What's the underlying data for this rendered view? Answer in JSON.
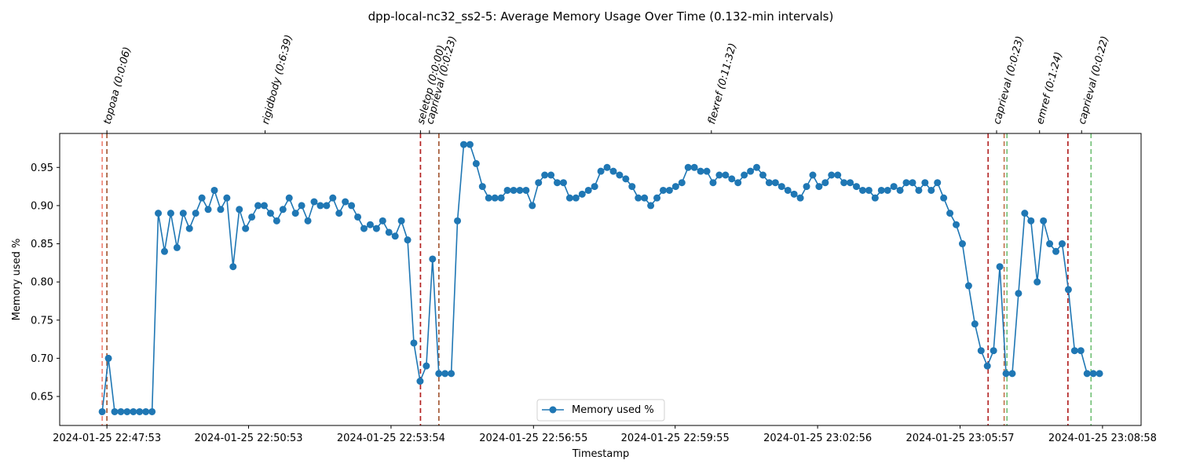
{
  "chart_data": {
    "type": "line",
    "title": "dpp-local-nc32_ss2-5: Average Memory Usage Over Time (0.132-min intervals)",
    "xlabel": "Timestamp",
    "ylabel": "Memory used %",
    "x_ticks": [
      "2024-01-25 22:47:53",
      "2024-01-25 22:50:53",
      "2024-01-25 22:53:54",
      "2024-01-25 22:56:55",
      "2024-01-25 22:59:55",
      "2024-01-25 23:02:56",
      "2024-01-25 23:05:57",
      "2024-01-25 23:08:58"
    ],
    "x_tick_values": [
      0,
      3,
      6.0167,
      9.0333,
      12.0333,
      15.05,
      18.0667,
      21.0833
    ],
    "x_range": [
      -1.0,
      21.9
    ],
    "y_ticks": [
      "0.65",
      "0.70",
      "0.75",
      "0.80",
      "0.85",
      "0.90",
      "0.95"
    ],
    "y_tick_values": [
      0.65,
      0.7,
      0.75,
      0.8,
      0.85,
      0.9,
      0.95
    ],
    "ylim": [
      0.612,
      0.9945
    ],
    "grid": false,
    "legend": {
      "position": "lower center",
      "entries": [
        "Memory used %"
      ]
    },
    "series": [
      {
        "name": "Memory used %",
        "color": "#1f77b4",
        "marker": "circle",
        "x_start": -0.1,
        "x_step": 0.132,
        "values": [
          0.63,
          0.7,
          0.63,
          0.63,
          0.63,
          0.63,
          0.63,
          0.63,
          0.63,
          0.89,
          0.84,
          0.89,
          0.845,
          0.89,
          0.87,
          0.89,
          0.91,
          0.895,
          0.92,
          0.895,
          0.91,
          0.82,
          0.895,
          0.87,
          0.885,
          0.9,
          0.9,
          0.89,
          0.88,
          0.895,
          0.91,
          0.89,
          0.9,
          0.88,
          0.905,
          0.9,
          0.9,
          0.91,
          0.89,
          0.905,
          0.9,
          0.885,
          0.87,
          0.875,
          0.87,
          0.88,
          0.865,
          0.86,
          0.88,
          0.855,
          0.72,
          0.67,
          0.69,
          0.83,
          0.68,
          0.68,
          0.68,
          0.88,
          0.98,
          0.98,
          0.955,
          0.925,
          0.91,
          0.91,
          0.91,
          0.92,
          0.92,
          0.92,
          0.92,
          0.9,
          0.93,
          0.94,
          0.94,
          0.93,
          0.93,
          0.91,
          0.91,
          0.915,
          0.92,
          0.925,
          0.945,
          0.95,
          0.945,
          0.94,
          0.935,
          0.925,
          0.91,
          0.91,
          0.9,
          0.91,
          0.92,
          0.92,
          0.925,
          0.93,
          0.95,
          0.95,
          0.945,
          0.945,
          0.93,
          0.94,
          0.94,
          0.935,
          0.93,
          0.94,
          0.945,
          0.95,
          0.94,
          0.93,
          0.93,
          0.925,
          0.92,
          0.915,
          0.91,
          0.925,
          0.94,
          0.925,
          0.93,
          0.94,
          0.94,
          0.93,
          0.93,
          0.925,
          0.92,
          0.92,
          0.91,
          0.92,
          0.92,
          0.925,
          0.92,
          0.93,
          0.93,
          0.92,
          0.93,
          0.92,
          0.93,
          0.91,
          0.89,
          0.875,
          0.85,
          0.795,
          0.745,
          0.71,
          0.69,
          0.71,
          0.82,
          0.68,
          0.68,
          0.785,
          0.89,
          0.88,
          0.8,
          0.88,
          0.85,
          0.84,
          0.85,
          0.79,
          0.71,
          0.71,
          0.68,
          0.68,
          0.68
        ]
      }
    ],
    "event_lines": [
      {
        "label": "topoaa (0:0:06)",
        "label_x": 0.0,
        "start": -0.1,
        "end": 0.0,
        "start_color": "#f08070",
        "end_color": "#a0522d"
      },
      {
        "label": "rigidbody (0:6:39)",
        "label_x": 3.35,
        "start": null,
        "end": null,
        "start_color": "#f08070",
        "end_color": "#a0522d"
      },
      {
        "label": "seletop (0:0:00)",
        "label_x": 6.64,
        "start": 6.64,
        "end": 6.64,
        "start_color": "#f08070",
        "end_color": "#b22222"
      },
      {
        "label": "caprieval (0:0:23)",
        "label_x": 6.83,
        "start": null,
        "end": 7.03,
        "start_color": "#f08070",
        "end_color": "#a0522d"
      },
      {
        "label": "flexref (0:11:32)",
        "label_x": 12.8,
        "start": null,
        "end": null,
        "start_color": "#f08070",
        "end_color": "#a0522d"
      },
      {
        "label": "caprieval (0:0:23)",
        "label_x": 18.84,
        "start": 18.66,
        "end": 19.06,
        "start_color": "#b22222",
        "end_color": "#6fbf73"
      },
      {
        "label": "emref (0:1:24)",
        "label_x": 19.75,
        "start": 19.0,
        "end": 20.35,
        "start_color": "#c0704a",
        "end_color": "#b22222"
      },
      {
        "label": "caprieval (0:0:22)",
        "label_x": 20.64,
        "start": 20.35,
        "end": 20.84,
        "start_color": "#b22222",
        "end_color": "#6fbf73"
      }
    ]
  }
}
